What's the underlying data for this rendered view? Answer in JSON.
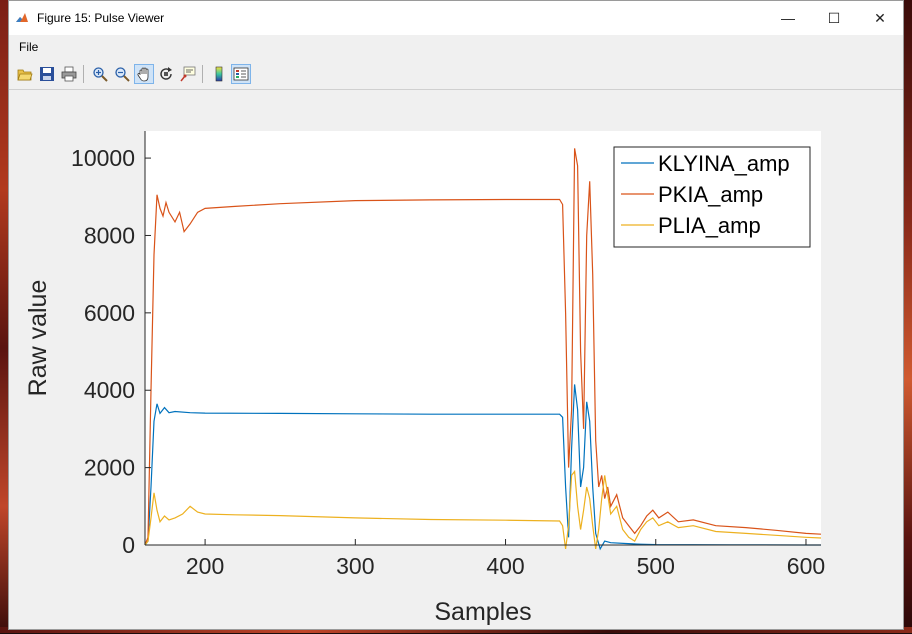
{
  "window": {
    "title": "Figure 15: Pulse Viewer",
    "controls": {
      "minimize": "—",
      "maximize": "☐",
      "close": "✕"
    }
  },
  "menubar": {
    "items": [
      "File"
    ]
  },
  "toolbar": {
    "buttons": [
      "open-file-icon",
      "save-icon",
      "print-icon",
      "zoom-in-icon",
      "zoom-out-icon",
      "pan-icon",
      "rotate-3d-icon",
      "data-cursor-icon",
      "insert-colorbar-icon",
      "insert-legend-icon"
    ],
    "active": "pan-icon"
  },
  "chart_data": {
    "type": "line",
    "xlabel": "Samples",
    "ylabel": "Raw value",
    "xlim": [
      160,
      610
    ],
    "ylim": [
      0,
      10700
    ],
    "xticks": [
      200,
      300,
      400,
      500,
      600
    ],
    "yticks": [
      0,
      2000,
      4000,
      6000,
      8000,
      10000
    ],
    "legend_position": "top-right",
    "grid": false,
    "series": [
      {
        "name": "KLYINA_amp",
        "color": "#0072BD",
        "points": [
          [
            160,
            0
          ],
          [
            162,
            100
          ],
          [
            164,
            1500
          ],
          [
            166,
            3200
          ],
          [
            168,
            3650
          ],
          [
            170,
            3400
          ],
          [
            173,
            3550
          ],
          [
            176,
            3420
          ],
          [
            180,
            3450
          ],
          [
            190,
            3420
          ],
          [
            200,
            3410
          ],
          [
            250,
            3400
          ],
          [
            300,
            3390
          ],
          [
            350,
            3380
          ],
          [
            400,
            3380
          ],
          [
            436,
            3380
          ],
          [
            438,
            3300
          ],
          [
            440,
            1500
          ],
          [
            442,
            200
          ],
          [
            444,
            2500
          ],
          [
            446,
            4150
          ],
          [
            448,
            3500
          ],
          [
            450,
            1500
          ],
          [
            452,
            2000
          ],
          [
            454,
            3700
          ],
          [
            456,
            3200
          ],
          [
            458,
            1500
          ],
          [
            460,
            300
          ],
          [
            463,
            -100
          ],
          [
            466,
            100
          ],
          [
            470,
            60
          ],
          [
            480,
            40
          ],
          [
            490,
            20
          ],
          [
            500,
            10
          ],
          [
            550,
            5
          ],
          [
            600,
            0
          ],
          [
            610,
            0
          ]
        ]
      },
      {
        "name": "PKIA_amp",
        "color": "#D95319",
        "points": [
          [
            160,
            0
          ],
          [
            162,
            200
          ],
          [
            164,
            4000
          ],
          [
            166,
            7500
          ],
          [
            168,
            9050
          ],
          [
            170,
            8700
          ],
          [
            172,
            8500
          ],
          [
            174,
            8850
          ],
          [
            176,
            8600
          ],
          [
            180,
            8350
          ],
          [
            183,
            8600
          ],
          [
            186,
            8100
          ],
          [
            190,
            8300
          ],
          [
            195,
            8600
          ],
          [
            200,
            8700
          ],
          [
            220,
            8750
          ],
          [
            250,
            8820
          ],
          [
            300,
            8900
          ],
          [
            350,
            8920
          ],
          [
            400,
            8930
          ],
          [
            436,
            8930
          ],
          [
            438,
            8800
          ],
          [
            440,
            6000
          ],
          [
            442,
            2000
          ],
          [
            444,
            3500
          ],
          [
            446,
            10250
          ],
          [
            448,
            9800
          ],
          [
            450,
            5000
          ],
          [
            452,
            3000
          ],
          [
            454,
            8000
          ],
          [
            456,
            9400
          ],
          [
            458,
            7000
          ],
          [
            460,
            2700
          ],
          [
            462,
            1500
          ],
          [
            464,
            1800
          ],
          [
            466,
            1200
          ],
          [
            468,
            1500
          ],
          [
            470,
            1000
          ],
          [
            474,
            1300
          ],
          [
            478,
            700
          ],
          [
            482,
            500
          ],
          [
            486,
            300
          ],
          [
            490,
            500
          ],
          [
            494,
            750
          ],
          [
            498,
            900
          ],
          [
            502,
            700
          ],
          [
            508,
            850
          ],
          [
            515,
            600
          ],
          [
            525,
            650
          ],
          [
            540,
            500
          ],
          [
            560,
            450
          ],
          [
            580,
            380
          ],
          [
            600,
            300
          ],
          [
            610,
            280
          ]
        ]
      },
      {
        "name": "PLIA_amp",
        "color": "#EDB120",
        "points": [
          [
            160,
            0
          ],
          [
            162,
            100
          ],
          [
            164,
            700
          ],
          [
            166,
            1350
          ],
          [
            168,
            900
          ],
          [
            170,
            600
          ],
          [
            173,
            750
          ],
          [
            176,
            650
          ],
          [
            180,
            700
          ],
          [
            185,
            800
          ],
          [
            190,
            1000
          ],
          [
            195,
            850
          ],
          [
            200,
            800
          ],
          [
            220,
            780
          ],
          [
            250,
            760
          ],
          [
            300,
            700
          ],
          [
            350,
            660
          ],
          [
            400,
            640
          ],
          [
            436,
            620
          ],
          [
            438,
            500
          ],
          [
            440,
            -100
          ],
          [
            442,
            500
          ],
          [
            444,
            1800
          ],
          [
            446,
            1900
          ],
          [
            448,
            1000
          ],
          [
            450,
            400
          ],
          [
            452,
            900
          ],
          [
            454,
            1500
          ],
          [
            456,
            1200
          ],
          [
            458,
            500
          ],
          [
            460,
            -100
          ],
          [
            462,
            400
          ],
          [
            464,
            1200
          ],
          [
            466,
            1800
          ],
          [
            468,
            1300
          ],
          [
            470,
            800
          ],
          [
            474,
            1000
          ],
          [
            478,
            400
          ],
          [
            482,
            200
          ],
          [
            486,
            100
          ],
          [
            490,
            400
          ],
          [
            494,
            600
          ],
          [
            498,
            700
          ],
          [
            502,
            500
          ],
          [
            508,
            600
          ],
          [
            515,
            450
          ],
          [
            525,
            500
          ],
          [
            540,
            350
          ],
          [
            560,
            300
          ],
          [
            580,
            250
          ],
          [
            600,
            200
          ],
          [
            610,
            180
          ]
        ]
      }
    ]
  }
}
